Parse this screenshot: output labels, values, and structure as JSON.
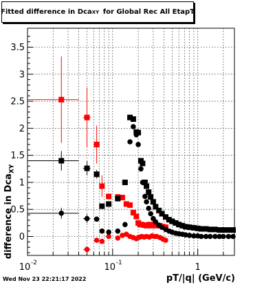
{
  "chart_data": {
    "type": "scatter",
    "title_prefix": "Fitted difference in Dca",
    "title_sub": "XY",
    "title_suffix": "for Global Rec All EtapT",
    "xlabel": "pT/|q| (GeV/c)",
    "ylabel_prefix": "difference in Dca",
    "ylabel_sub": "XY",
    "x_scale": "log",
    "xlim": [
      0.01,
      2.7
    ],
    "ylim": [
      -0.35,
      3.85
    ],
    "x_ticks": [
      0.01,
      0.1,
      1
    ],
    "x_tick_labels": [
      "10",
      "10",
      "1"
    ],
    "x_tick_exponents": [
      "-2",
      "-1",
      ""
    ],
    "y_ticks": [
      0,
      0.5,
      1,
      1.5,
      2,
      2.5,
      3,
      3.5
    ],
    "y_tick_labels": [
      "0",
      "0.5",
      "1",
      "1.5",
      "2",
      "2.5",
      "3",
      "3.5"
    ],
    "grid": true,
    "series": [
      {
        "color": "#ff0000",
        "marker": "square",
        "points": [
          {
            "x": 0.025,
            "y": 2.53,
            "xerr": 0.015,
            "yerr": 0.8
          },
          {
            "x": 0.05,
            "y": 2.2,
            "xerr": 0.005,
            "yerr": 0.55
          },
          {
            "x": 0.065,
            "y": 1.7,
            "xerr": 0.004,
            "yerr": 0.35
          },
          {
            "x": 0.075,
            "y": 0.93,
            "xerr": 0.004,
            "yerr": 0.2
          },
          {
            "x": 0.09,
            "y": 0.74,
            "xerr": 0.004
          },
          {
            "x": 0.115,
            "y": 0.73
          },
          {
            "x": 0.13,
            "y": 0.72
          },
          {
            "x": 0.145,
            "y": 0.6
          },
          {
            "x": 0.16,
            "y": 0.58
          },
          {
            "x": 0.175,
            "y": 0.44
          },
          {
            "x": 0.19,
            "y": 0.37
          },
          {
            "x": 0.2,
            "y": 0.25
          },
          {
            "x": 0.21,
            "y": 0.22
          },
          {
            "x": 0.22,
            "y": 0.22
          },
          {
            "x": 0.235,
            "y": 0.21
          },
          {
            "x": 0.25,
            "y": 0.2
          },
          {
            "x": 0.27,
            "y": 0.22
          },
          {
            "x": 0.29,
            "y": 0.2
          },
          {
            "x": 0.31,
            "y": 0.22
          },
          {
            "x": 0.33,
            "y": 0.2
          },
          {
            "x": 0.36,
            "y": 0.2
          },
          {
            "x": 0.39,
            "y": 0.18
          },
          {
            "x": 0.42,
            "y": 0.17
          }
        ]
      },
      {
        "color": "#000000",
        "marker": "square",
        "points": [
          {
            "x": 0.025,
            "y": 1.4,
            "xerr": 0.015,
            "yerr": 0.18
          },
          {
            "x": 0.05,
            "y": 1.26,
            "xerr": 0.005,
            "yerr": 0.13
          },
          {
            "x": 0.065,
            "y": 1.15,
            "xerr": 0.004,
            "yerr": 0.08
          },
          {
            "x": 0.075,
            "y": 0.56
          },
          {
            "x": 0.09,
            "y": 0.6
          },
          {
            "x": 0.115,
            "y": 0.7
          },
          {
            "x": 0.14,
            "y": 1.0
          },
          {
            "x": 0.16,
            "y": 2.2
          },
          {
            "x": 0.175,
            "y": 2.17
          },
          {
            "x": 0.19,
            "y": 1.93
          },
          {
            "x": 0.2,
            "y": 1.92
          },
          {
            "x": 0.215,
            "y": 1.4
          },
          {
            "x": 0.225,
            "y": 1.35
          },
          {
            "x": 0.24,
            "y": 1.0
          },
          {
            "x": 0.25,
            "y": 0.93
          },
          {
            "x": 0.265,
            "y": 0.82
          },
          {
            "x": 0.28,
            "y": 0.73
          },
          {
            "x": 0.3,
            "y": 0.64
          },
          {
            "x": 0.32,
            "y": 0.55
          },
          {
            "x": 0.35,
            "y": 0.48
          },
          {
            "x": 0.38,
            "y": 0.42
          },
          {
            "x": 0.42,
            "y": 0.36
          },
          {
            "x": 0.46,
            "y": 0.31
          },
          {
            "x": 0.5,
            "y": 0.28
          },
          {
            "x": 0.55,
            "y": 0.25
          },
          {
            "x": 0.6,
            "y": 0.22
          },
          {
            "x": 0.66,
            "y": 0.2
          },
          {
            "x": 0.72,
            "y": 0.18
          },
          {
            "x": 0.8,
            "y": 0.17
          },
          {
            "x": 0.9,
            "y": 0.16
          },
          {
            "x": 1.0,
            "y": 0.15
          },
          {
            "x": 1.1,
            "y": 0.14
          },
          {
            "x": 1.25,
            "y": 0.14
          },
          {
            "x": 1.4,
            "y": 0.13
          },
          {
            "x": 1.6,
            "y": 0.13
          },
          {
            "x": 1.8,
            "y": 0.12
          },
          {
            "x": 2.0,
            "y": 0.12
          },
          {
            "x": 2.3,
            "y": 0.12
          },
          {
            "x": 2.6,
            "y": 0.12
          }
        ]
      },
      {
        "color": "#ff0000",
        "marker": "circle",
        "points": [
          {
            "x": 0.05,
            "y": -0.24,
            "xerr": 0.005
          },
          {
            "x": 0.065,
            "y": -0.07
          },
          {
            "x": 0.075,
            "y": -0.09
          },
          {
            "x": 0.09,
            "y": 0.0
          },
          {
            "x": 0.115,
            "y": -0.03
          },
          {
            "x": 0.13,
            "y": 0.02
          },
          {
            "x": 0.145,
            "y": 0.04
          },
          {
            "x": 0.16,
            "y": 0.0
          },
          {
            "x": 0.175,
            "y": -0.02
          },
          {
            "x": 0.19,
            "y": -0.04
          },
          {
            "x": 0.2,
            "y": -0.02
          },
          {
            "x": 0.21,
            "y": -0.01
          },
          {
            "x": 0.22,
            "y": 0.0
          },
          {
            "x": 0.235,
            "y": -0.01
          },
          {
            "x": 0.25,
            "y": 0.0
          },
          {
            "x": 0.27,
            "y": -0.01
          },
          {
            "x": 0.29,
            "y": 0.01
          },
          {
            "x": 0.31,
            "y": 0.0
          },
          {
            "x": 0.33,
            "y": 0.0
          },
          {
            "x": 0.36,
            "y": -0.02
          },
          {
            "x": 0.39,
            "y": -0.05
          },
          {
            "x": 0.42,
            "y": -0.07
          }
        ]
      },
      {
        "color": "#000000",
        "marker": "circle",
        "points": [
          {
            "x": 0.025,
            "y": 0.43,
            "xerr": 0.015,
            "yerr": 0.1
          },
          {
            "x": 0.05,
            "y": 0.33,
            "xerr": 0.005,
            "yerr": 0.08
          },
          {
            "x": 0.065,
            "y": 0.32,
            "xerr": 0.004
          },
          {
            "x": 0.075,
            "y": 0.1
          },
          {
            "x": 0.09,
            "y": 0.08
          },
          {
            "x": 0.115,
            "y": 0.1
          },
          {
            "x": 0.14,
            "y": 0.22
          },
          {
            "x": 0.16,
            "y": 1.75
          },
          {
            "x": 0.175,
            "y": 2.03
          },
          {
            "x": 0.19,
            "y": 1.88
          },
          {
            "x": 0.2,
            "y": 1.7
          },
          {
            "x": 0.215,
            "y": 1.25
          },
          {
            "x": 0.225,
            "y": 1.0
          },
          {
            "x": 0.24,
            "y": 0.74
          },
          {
            "x": 0.25,
            "y": 0.64
          },
          {
            "x": 0.265,
            "y": 0.52
          },
          {
            "x": 0.28,
            "y": 0.42
          },
          {
            "x": 0.3,
            "y": 0.33
          },
          {
            "x": 0.32,
            "y": 0.27
          },
          {
            "x": 0.35,
            "y": 0.21
          },
          {
            "x": 0.38,
            "y": 0.17
          },
          {
            "x": 0.42,
            "y": 0.13
          },
          {
            "x": 0.46,
            "y": 0.1
          },
          {
            "x": 0.5,
            "y": 0.08
          },
          {
            "x": 0.55,
            "y": 0.06
          },
          {
            "x": 0.6,
            "y": 0.05
          },
          {
            "x": 0.66,
            "y": 0.04
          },
          {
            "x": 0.72,
            "y": 0.03
          },
          {
            "x": 0.8,
            "y": 0.02
          },
          {
            "x": 0.9,
            "y": 0.01
          },
          {
            "x": 1.0,
            "y": 0.01
          },
          {
            "x": 1.1,
            "y": 0.0
          },
          {
            "x": 1.25,
            "y": 0.0
          },
          {
            "x": 1.4,
            "y": 0.0
          },
          {
            "x": 1.6,
            "y": 0.0
          },
          {
            "x": 1.8,
            "y": 0.0
          },
          {
            "x": 2.0,
            "y": 0.0
          },
          {
            "x": 2.3,
            "y": 0.0
          },
          {
            "x": 2.6,
            "y": 0.0
          }
        ]
      }
    ]
  },
  "footer": {
    "datestamp": "Wed Nov 23 22:21:17 2022"
  }
}
